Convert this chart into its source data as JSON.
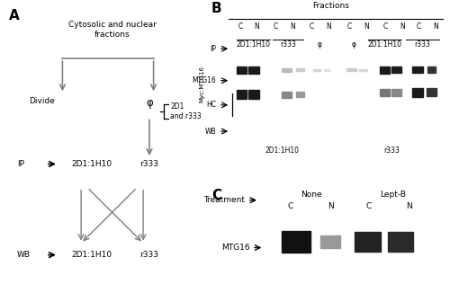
{
  "fig_width": 5.0,
  "fig_height": 3.26,
  "bg_color": "#ffffff",
  "fs": 7.5,
  "fs_small": 6.5,
  "fs_tiny": 5.5,
  "band_dark": "#1a1a1a",
  "band_med": "#555555",
  "band_light": "#aaaaaa",
  "blot_bg": "#c8c8c8",
  "blot_bg_c": "#d0d0d0",
  "panel_A": {
    "label": "A",
    "text_top": "Cytosolic and nuclear\nfractions",
    "text_divide": "Divide",
    "text_phi": "φ",
    "text_bracket": "2D1\nand r333",
    "text_IP": "IP",
    "text_WB": "WB",
    "text_2D1_ip": "2D1:1H10",
    "text_r333_ip": "r333",
    "text_2D1_wb": "2D1:1H10",
    "text_r333_wb": "r333"
  },
  "panel_B": {
    "label": "B",
    "title": "Fractions",
    "cn_left": [
      "C",
      "N",
      "C",
      "N",
      "C",
      "N"
    ],
    "cn_right": [
      "C",
      "N",
      "C",
      "N",
      "C",
      "N"
    ],
    "ip_left_labels": [
      "2D1:1H10",
      "r333",
      "φ"
    ],
    "ip_right_labels": [
      "φ",
      "2D1:1H10",
      "r333"
    ],
    "side_label": "Myc:MTG16",
    "row_labels": [
      "IP",
      "MTG16",
      "HC",
      "WB"
    ],
    "wb_left": "2D1:1H10",
    "wb_right": "r333"
  },
  "panel_C": {
    "label": "C",
    "treatment_label": "Treatment",
    "none_label": "None",
    "leptb_label": "Lept-B",
    "cn_labels": [
      "C",
      "N",
      "C",
      "N"
    ],
    "mtg16_label": "MTG16"
  }
}
